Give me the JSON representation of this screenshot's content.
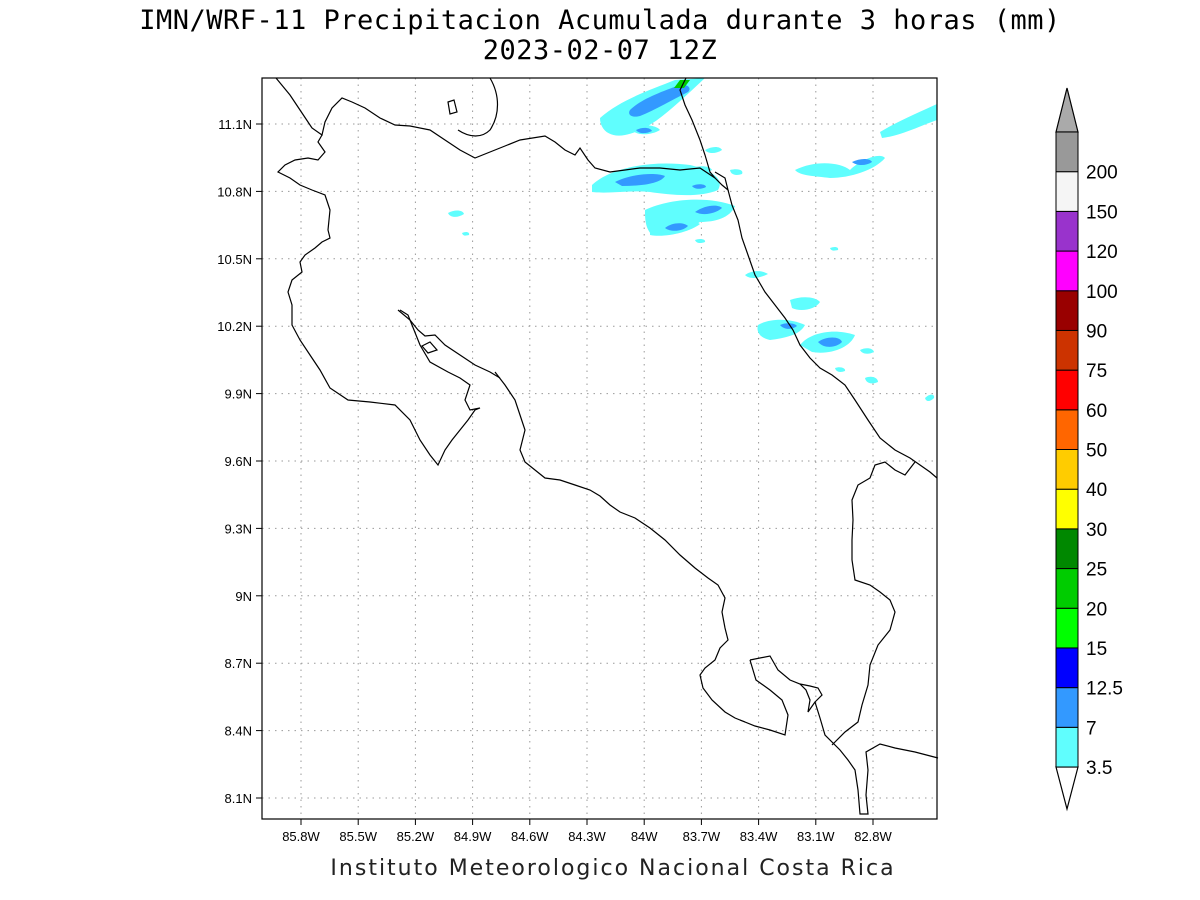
{
  "title": {
    "line1": "IMN/WRF-11 Precipitacion Acumulada durante 3 horas (mm)",
    "line2": "2023-02-07 12Z"
  },
  "footer": "Instituto Meteorologico Nacional Costa Rica",
  "map": {
    "lon_ticks": [
      "85.8W",
      "85.5W",
      "85.2W",
      "84.9W",
      "84.6W",
      "84.3W",
      "84W",
      "83.7W",
      "83.4W",
      "83.1W",
      "82.8W"
    ],
    "lat_ticks": [
      "11.1N",
      "10.8N",
      "10.5N",
      "10.2N",
      "9.9N",
      "9.6N",
      "9.3N",
      "9N",
      "8.7N",
      "8.4N",
      "8.1N"
    ],
    "grid": "dotted",
    "coastline_color": "#000000"
  },
  "colorbar": {
    "levels": [
      "3.5",
      "7",
      "12.5",
      "15",
      "20",
      "25",
      "30",
      "40",
      "50",
      "60",
      "75",
      "90",
      "100",
      "120",
      "150",
      "200"
    ],
    "colors": [
      "#60fefe",
      "#3399ff",
      "#0000ff",
      "#00ff00",
      "#00cc00",
      "#008800",
      "#ffff00",
      "#ffcc00",
      "#ff6600",
      "#ff0000",
      "#cc3300",
      "#990000",
      "#ff00ff",
      "#9933cc",
      "#f5f5f5",
      "#999999"
    ],
    "top_arrow_color": "#aaaaaa",
    "bottom_arrow_color": "#ffffff"
  }
}
